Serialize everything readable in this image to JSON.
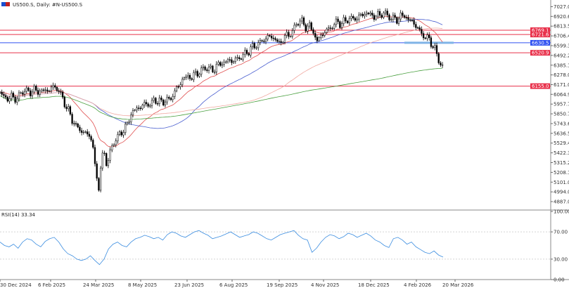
{
  "header": {
    "symbol_label": "US500.S, Daily: #N-US500.S"
  },
  "chart_data": {
    "type": "candlestick",
    "symbol": "US500.S",
    "timeframe": "Daily",
    "y_ticks": [
      "7027.0",
      "6920.6",
      "6813.5",
      "6706.4",
      "6599.3",
      "6492.2",
      "6385.1",
      "6278.0",
      "6171.0",
      "6064.9",
      "5957.7",
      "5850.7",
      "5743.6",
      "5636.5",
      "5529.4",
      "5422.3",
      "5315.2",
      "5208.1",
      "5101.0",
      "4994.0",
      "4887.0"
    ],
    "ylim": [
      4810,
      7085
    ],
    "x_ticks": [
      "30 Dec 2024",
      "6 Feb 2025",
      "24 Mar 2025",
      "8 May 2025",
      "23 Jun 2025",
      "6 Aug 2025",
      "19 Sep 2025",
      "4 Nov 2025",
      "18 Dec 2025",
      "4 Feb 2026",
      "20 Mar 2026"
    ],
    "horizontal_levels": [
      {
        "label": "6769.1",
        "value": 6769.1,
        "color": "#e8304a"
      },
      {
        "label": "6721.6",
        "value": 6721.6,
        "color": "#e8304a"
      },
      {
        "label": "6630.5",
        "value": 6630.5,
        "color": "#3050f0"
      },
      {
        "label": "6520.9",
        "value": 6520.9,
        "color": "#e8304a"
      },
      {
        "label": "6155.0",
        "value": 6155.0,
        "color": "#e8304a"
      }
    ],
    "price_path": [
      [
        0,
        6080
      ],
      [
        6,
        6040
      ],
      [
        12,
        6010
      ],
      [
        18,
        6050
      ],
      [
        24,
        6000
      ],
      [
        30,
        6090
      ],
      [
        36,
        6110
      ],
      [
        42,
        6080
      ],
      [
        48,
        6120
      ],
      [
        54,
        6090
      ],
      [
        60,
        6110
      ],
      [
        66,
        6100
      ],
      [
        72,
        6130
      ],
      [
        78,
        6150
      ],
      [
        84,
        6100
      ],
      [
        90,
        6000
      ],
      [
        96,
        5900
      ],
      [
        102,
        5800
      ],
      [
        108,
        5710
      ],
      [
        114,
        5680
      ],
      [
        120,
        5630
      ],
      [
        126,
        5640
      ],
      [
        132,
        5500
      ],
      [
        136,
        5230
      ],
      [
        140,
        5000
      ],
      [
        144,
        5350
      ],
      [
        148,
        5420
      ],
      [
        152,
        5300
      ],
      [
        156,
        5400
      ],
      [
        160,
        5510
      ],
      [
        164,
        5570
      ],
      [
        170,
        5620
      ],
      [
        176,
        5680
      ],
      [
        182,
        5750
      ],
      [
        188,
        5880
      ],
      [
        194,
        5900
      ],
      [
        200,
        5930
      ],
      [
        206,
        5960
      ],
      [
        212,
        5950
      ],
      [
        218,
        5990
      ],
      [
        224,
        6000
      ],
      [
        230,
        5970
      ],
      [
        236,
        6010
      ],
      [
        242,
        6000
      ],
      [
        248,
        6100
      ],
      [
        254,
        6150
      ],
      [
        260,
        6240
      ],
      [
        266,
        6260
      ],
      [
        272,
        6250
      ],
      [
        278,
        6290
      ],
      [
        284,
        6310
      ],
      [
        290,
        6350
      ],
      [
        296,
        6360
      ],
      [
        302,
        6320
      ],
      [
        308,
        6380
      ],
      [
        314,
        6400
      ],
      [
        320,
        6420
      ],
      [
        326,
        6440
      ],
      [
        332,
        6430
      ],
      [
        338,
        6460
      ],
      [
        344,
        6480
      ],
      [
        350,
        6520
      ],
      [
        356,
        6560
      ],
      [
        362,
        6600
      ],
      [
        368,
        6620
      ],
      [
        374,
        6660
      ],
      [
        380,
        6690
      ],
      [
        386,
        6700
      ],
      [
        392,
        6660
      ],
      [
        398,
        6620
      ],
      [
        404,
        6690
      ],
      [
        410,
        6720
      ],
      [
        416,
        6750
      ],
      [
        422,
        6850
      ],
      [
        428,
        6880
      ],
      [
        434,
        6800
      ],
      [
        440,
        6820
      ],
      [
        446,
        6740
      ],
      [
        450,
        6650
      ],
      [
        456,
        6700
      ],
      [
        462,
        6760
      ],
      [
        468,
        6780
      ],
      [
        474,
        6830
      ],
      [
        480,
        6860
      ],
      [
        486,
        6840
      ],
      [
        492,
        6880
      ],
      [
        498,
        6900
      ],
      [
        504,
        6890
      ],
      [
        510,
        6920
      ],
      [
        516,
        6940
      ],
      [
        522,
        6960
      ],
      [
        528,
        6930
      ],
      [
        534,
        6920
      ],
      [
        540,
        6940
      ],
      [
        546,
        6960
      ],
      [
        552,
        6920
      ],
      [
        558,
        6900
      ],
      [
        564,
        6880
      ],
      [
        570,
        6930
      ],
      [
        576,
        6920
      ],
      [
        582,
        6880
      ],
      [
        588,
        6850
      ],
      [
        594,
        6790
      ],
      [
        600,
        6720
      ],
      [
        606,
        6690
      ],
      [
        612,
        6650
      ],
      [
        618,
        6560
      ],
      [
        622,
        6480
      ],
      [
        626,
        6400
      ],
      [
        630,
        6360
      ]
    ],
    "rsi": {
      "label": "RSI(14) 33.34",
      "value": 33.34,
      "levels": [
        70,
        30
      ],
      "ticks": [
        "100.00",
        "70.00",
        "30.00",
        "0.00"
      ],
      "series": [
        55,
        50,
        48,
        52,
        46,
        55,
        60,
        58,
        52,
        48,
        56,
        60,
        62,
        55,
        45,
        38,
        35,
        30,
        28,
        30,
        35,
        28,
        22,
        30,
        45,
        52,
        55,
        50,
        48,
        55,
        60,
        62,
        65,
        63,
        60,
        62,
        58,
        66,
        70,
        68,
        64,
        62,
        66,
        70,
        72,
        68,
        65,
        60,
        62,
        64,
        67,
        70,
        66,
        62,
        64,
        66,
        70,
        68,
        64,
        60,
        58,
        62,
        66,
        68,
        70,
        72,
        65,
        60,
        58,
        40,
        46,
        55,
        62,
        66,
        64,
        60,
        63,
        68,
        66,
        62,
        65,
        68,
        64,
        58,
        55,
        50,
        47,
        60,
        62,
        58,
        52,
        55,
        48,
        44,
        40,
        38,
        42,
        36,
        33
      ]
    }
  }
}
